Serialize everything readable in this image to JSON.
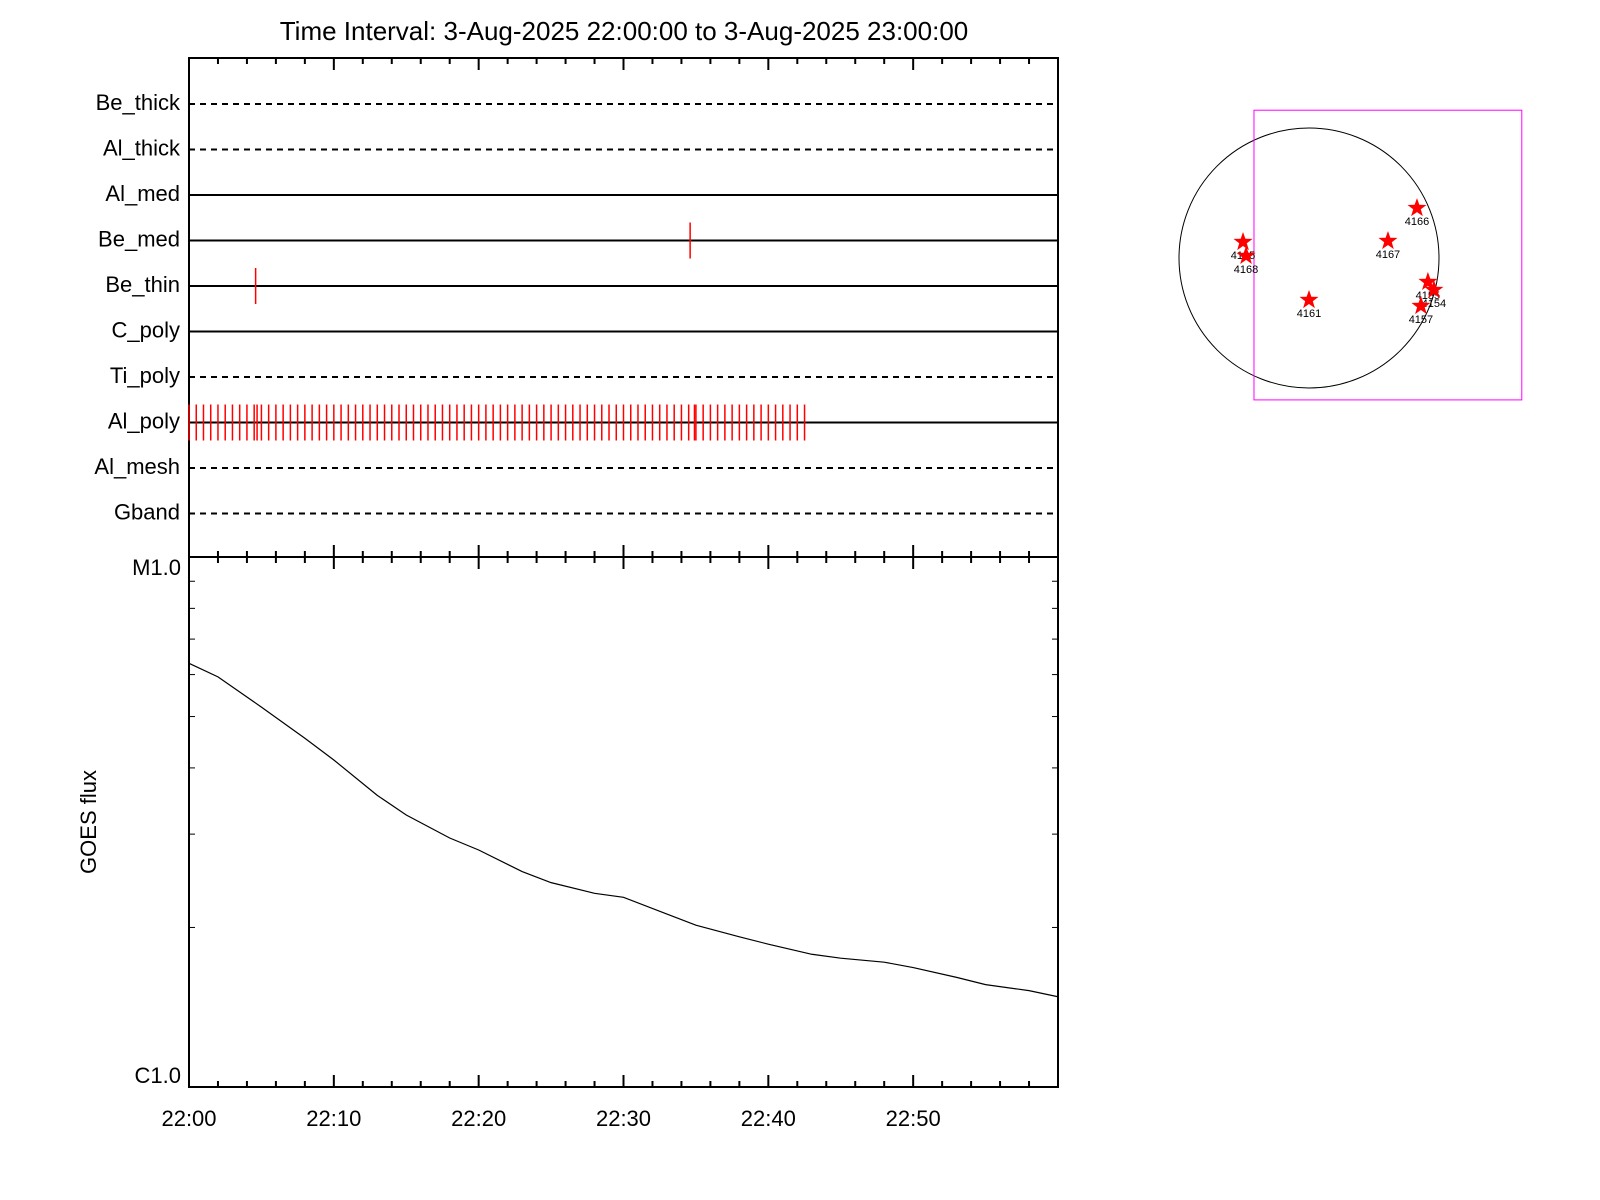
{
  "chart_data": [
    {
      "type": "timeline",
      "title": "Time Interval:  3-Aug-2025 22:00:00 to  3-Aug-2025 23:00:00",
      "xlim": [
        0,
        60
      ],
      "xticks": [
        {
          "value": 0,
          "label": "22:00"
        },
        {
          "value": 10,
          "label": "22:10"
        },
        {
          "value": 20,
          "label": "22:20"
        },
        {
          "value": 30,
          "label": "22:30"
        },
        {
          "value": 40,
          "label": "22:40"
        },
        {
          "value": 50,
          "label": "22:50"
        }
      ],
      "event_color": "#ff0000",
      "rows": [
        {
          "name": "Be_thick",
          "style": "dashed",
          "events": []
        },
        {
          "name": "Al_thick",
          "style": "dashed",
          "events": []
        },
        {
          "name": "Al_med",
          "style": "solid",
          "events": []
        },
        {
          "name": "Be_med",
          "style": "solid",
          "events": [
            34.6
          ]
        },
        {
          "name": "Be_thin",
          "style": "solid",
          "events": [
            4.6
          ]
        },
        {
          "name": "C_poly",
          "style": "solid",
          "events": []
        },
        {
          "name": "Ti_poly",
          "style": "dashed",
          "events": []
        },
        {
          "name": "Al_poly",
          "style": "solid",
          "events": [
            0,
            0.5,
            1,
            1.5,
            2,
            2.5,
            3,
            3.5,
            4,
            4.5,
            4.7,
            5,
            5.5,
            6,
            6.5,
            7,
            7.5,
            8,
            8.5,
            9,
            9.5,
            10,
            10.5,
            11,
            11.5,
            12,
            12.5,
            13,
            13.5,
            14,
            14.5,
            15,
            15.5,
            16,
            16.5,
            17,
            17.5,
            18,
            18.5,
            19,
            19.5,
            20,
            20.5,
            21,
            21.5,
            22,
            22.5,
            23,
            23.5,
            24,
            24.5,
            25,
            25.5,
            26,
            26.5,
            27,
            27.5,
            28,
            28.5,
            29,
            29.5,
            30,
            30.5,
            31,
            31.5,
            32,
            32.5,
            33,
            33.5,
            34,
            34.5,
            34.9,
            35,
            35.5,
            36,
            36.5,
            37,
            37.5,
            38,
            38.5,
            39,
            39.5,
            40,
            40.5,
            41,
            41.5,
            42,
            42.5
          ]
        },
        {
          "name": "Al_mesh",
          "style": "dashed",
          "events": []
        },
        {
          "name": "Gband",
          "style": "dashed",
          "events": []
        }
      ]
    },
    {
      "type": "line",
      "ylabel": "GOES flux",
      "log_scale": true,
      "color": "#000000",
      "xlim": [
        0,
        60
      ],
      "ylim": [
        1e-06,
        1e-05
      ],
      "yticks": [
        {
          "value": 1e-06,
          "label": "C1.0"
        },
        {
          "value": 1e-05,
          "label": "M1.0"
        }
      ],
      "yminor": [
        2e-06,
        3e-06,
        4e-06,
        5e-06,
        6e-06,
        7e-06,
        8e-06,
        9e-06
      ],
      "x": [
        0,
        2,
        5,
        8,
        10,
        13,
        15,
        18,
        20,
        23,
        25,
        28,
        30,
        33,
        35,
        38,
        40,
        43,
        45,
        48,
        50,
        53,
        55,
        58,
        60
      ],
      "values": [
        6.3e-06,
        5.94e-06,
        5.21e-06,
        4.55e-06,
        4.14e-06,
        3.55e-06,
        3.26e-06,
        2.95e-06,
        2.8e-06,
        2.55e-06,
        2.43e-06,
        2.32e-06,
        2.28e-06,
        2.12e-06,
        2.02e-06,
        1.92e-06,
        1.86e-06,
        1.78e-06,
        1.75e-06,
        1.72e-06,
        1.68e-06,
        1.61e-06,
        1.56e-06,
        1.52e-06,
        1.48e-06
      ]
    },
    {
      "type": "sun",
      "radius": 950,
      "fov_color": "#ff00ff",
      "fov": {
        "xlim": [
          -402,
          1555
        ],
        "ylim": [
          -1037,
          1080
        ]
      },
      "marker_color": "#ff0000",
      "regions": [
        {
          "name": "4166",
          "x": 789,
          "y": 365
        },
        {
          "name": "4165",
          "x": -482,
          "y": 117
        },
        {
          "name": "4168",
          "x": -460,
          "y": 15
        },
        {
          "name": "4167",
          "x": 577,
          "y": 124
        },
        {
          "name": "4161",
          "x": 0,
          "y": -307
        },
        {
          "name": "4155",
          "x": 869,
          "y": -175
        },
        {
          "name": "4154",
          "x": 913,
          "y": -234
        },
        {
          "name": "4157",
          "x": 818,
          "y": -351
        }
      ]
    }
  ]
}
